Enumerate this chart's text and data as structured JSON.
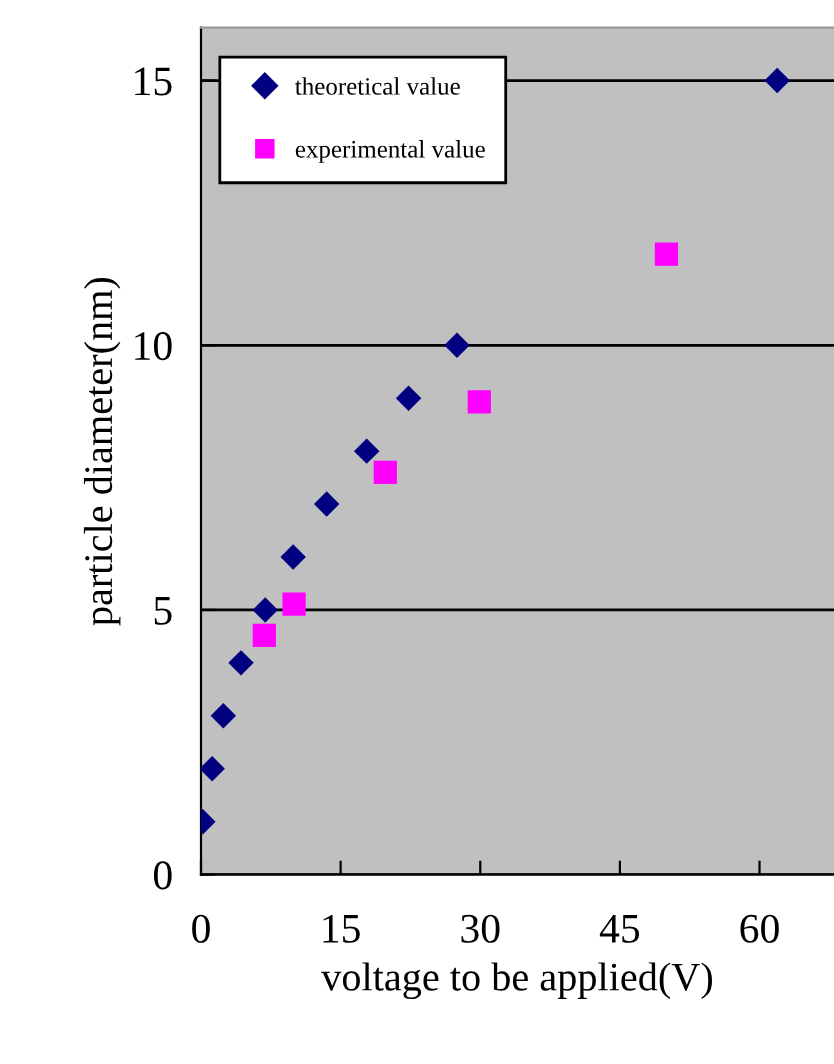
{
  "chart_data": {
    "type": "scatter",
    "xlabel": "voltage to be applied(V)",
    "ylabel": "particle diameter(nm)",
    "xlim": [
      0,
      68
    ],
    "ylim": [
      0,
      16
    ],
    "xticks": [
      0,
      15,
      30,
      45,
      60
    ],
    "yticks": [
      0,
      5,
      10,
      15
    ],
    "grid": "y",
    "legend": "top left",
    "series": [
      {
        "name": "theoretical value",
        "color": "#000080",
        "marker": "diamond",
        "x": [
          0.2,
          1.2,
          2.4,
          4.3,
          6.9,
          9.9,
          13.5,
          17.8,
          22.3,
          27.5,
          61.9
        ],
        "values": [
          1,
          2,
          3,
          4,
          5,
          6,
          7,
          8,
          9,
          10,
          15
        ]
      },
      {
        "name": "experimental value",
        "color": "#ff00ff",
        "marker": "square",
        "x": [
          6.8,
          10.0,
          19.8,
          29.9,
          50.0
        ],
        "values": [
          4.52,
          5.11,
          7.6,
          8.93,
          11.72
        ]
      }
    ]
  }
}
